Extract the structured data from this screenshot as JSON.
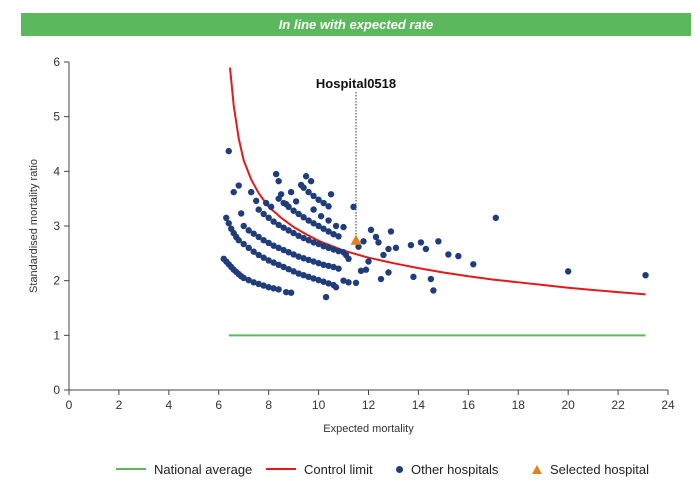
{
  "banner": {
    "text": "In line with expected rate",
    "color": "#5cb85c"
  },
  "legend": {
    "national_average": "National average",
    "control_limit": "Control limit",
    "other_hospitals": "Other hospitals",
    "selected_hospital": "Selected hospital"
  },
  "colors": {
    "national_average": "#5cb85c",
    "control_limit": "#e31a1c",
    "other_hospitals": "#1f3d7a",
    "selected_hospital": "#e67e22"
  },
  "chart_data": {
    "type": "scatter",
    "title": "",
    "xlabel": "Expected mortality",
    "ylabel": "Standardised mortality ratio",
    "xlim": [
      0,
      24
    ],
    "ylim": [
      0,
      6
    ],
    "xticks": [
      0,
      2,
      4,
      6,
      8,
      10,
      12,
      14,
      16,
      18,
      20,
      22,
      24
    ],
    "yticks": [
      0,
      1,
      2,
      3,
      4,
      5,
      6
    ],
    "grid": false,
    "legend_position": "bottom",
    "selected_label": "Hospital0518",
    "series": [
      {
        "name": "National average",
        "kind": "line",
        "points": [
          [
            6.4,
            1.0
          ],
          [
            23.1,
            1.0
          ]
        ]
      },
      {
        "name": "Control limit",
        "kind": "line",
        "points": [
          [
            6.45,
            5.9
          ],
          [
            6.6,
            5.2
          ],
          [
            6.8,
            4.6
          ],
          [
            7.0,
            4.2
          ],
          [
            7.3,
            3.85
          ],
          [
            7.6,
            3.6
          ],
          [
            8.0,
            3.35
          ],
          [
            8.5,
            3.15
          ],
          [
            9.0,
            2.98
          ],
          [
            9.5,
            2.85
          ],
          [
            10.0,
            2.73
          ],
          [
            11.0,
            2.55
          ],
          [
            12.0,
            2.42
          ],
          [
            13.0,
            2.32
          ],
          [
            14.0,
            2.23
          ],
          [
            15.0,
            2.15
          ],
          [
            16.0,
            2.08
          ],
          [
            17.0,
            2.02
          ],
          [
            18.0,
            1.97
          ],
          [
            19.0,
            1.92
          ],
          [
            20.0,
            1.87
          ],
          [
            21.0,
            1.83
          ],
          [
            22.0,
            1.79
          ],
          [
            23.1,
            1.75
          ]
        ]
      },
      {
        "name": "Other hospitals",
        "kind": "scatter",
        "points": [
          [
            6.2,
            2.4
          ],
          [
            6.3,
            2.35
          ],
          [
            6.4,
            2.3
          ],
          [
            6.5,
            2.25
          ],
          [
            6.6,
            2.2
          ],
          [
            6.7,
            2.16
          ],
          [
            6.8,
            2.12
          ],
          [
            6.9,
            2.08
          ],
          [
            7.0,
            2.05
          ],
          [
            7.2,
            2.01
          ],
          [
            7.4,
            1.97
          ],
          [
            7.6,
            1.94
          ],
          [
            7.8,
            1.91
          ],
          [
            8.0,
            1.88
          ],
          [
            8.2,
            1.86
          ],
          [
            8.4,
            1.84
          ],
          [
            8.7,
            1.79
          ],
          [
            8.9,
            1.78
          ],
          [
            6.3,
            3.15
          ],
          [
            6.4,
            3.05
          ],
          [
            6.5,
            2.95
          ],
          [
            6.6,
            2.87
          ],
          [
            6.7,
            2.8
          ],
          [
            6.8,
            2.74
          ],
          [
            7.0,
            2.67
          ],
          [
            7.2,
            2.6
          ],
          [
            7.4,
            2.53
          ],
          [
            7.6,
            2.47
          ],
          [
            7.8,
            2.42
          ],
          [
            8.0,
            2.37
          ],
          [
            8.2,
            2.33
          ],
          [
            8.4,
            2.29
          ],
          [
            8.6,
            2.25
          ],
          [
            8.8,
            2.21
          ],
          [
            9.0,
            2.17
          ],
          [
            9.2,
            2.13
          ],
          [
            9.4,
            2.1
          ],
          [
            9.6,
            2.07
          ],
          [
            9.8,
            2.04
          ],
          [
            10.0,
            2.01
          ],
          [
            10.2,
            1.98
          ],
          [
            10.4,
            1.95
          ],
          [
            10.6,
            1.92
          ],
          [
            10.7,
            1.88
          ],
          [
            10.3,
            1.7
          ],
          [
            7.0,
            3.0
          ],
          [
            7.2,
            2.92
          ],
          [
            7.4,
            2.86
          ],
          [
            7.6,
            2.8
          ],
          [
            7.8,
            2.74
          ],
          [
            8.0,
            2.69
          ],
          [
            8.2,
            2.64
          ],
          [
            8.4,
            2.6
          ],
          [
            8.6,
            2.56
          ],
          [
            8.8,
            2.52
          ],
          [
            9.0,
            2.48
          ],
          [
            9.2,
            2.44
          ],
          [
            9.4,
            2.41
          ],
          [
            9.6,
            2.38
          ],
          [
            9.8,
            2.35
          ],
          [
            10.0,
            2.32
          ],
          [
            10.2,
            2.29
          ],
          [
            10.4,
            2.27
          ],
          [
            10.6,
            2.25
          ],
          [
            10.8,
            2.22
          ],
          [
            7.6,
            3.3
          ],
          [
            7.8,
            3.22
          ],
          [
            8.0,
            3.15
          ],
          [
            8.2,
            3.08
          ],
          [
            8.4,
            3.02
          ],
          [
            8.6,
            2.97
          ],
          [
            8.8,
            2.92
          ],
          [
            9.0,
            2.87
          ],
          [
            9.2,
            2.82
          ],
          [
            9.4,
            2.78
          ],
          [
            9.6,
            2.74
          ],
          [
            9.8,
            2.7
          ],
          [
            10.0,
            2.67
          ],
          [
            10.2,
            2.63
          ],
          [
            10.4,
            2.6
          ],
          [
            10.6,
            2.57
          ],
          [
            10.8,
            2.54
          ],
          [
            11.0,
            2.52
          ],
          [
            8.4,
            3.5
          ],
          [
            8.6,
            3.42
          ],
          [
            8.8,
            3.35
          ],
          [
            9.0,
            3.28
          ],
          [
            9.2,
            3.22
          ],
          [
            9.4,
            3.16
          ],
          [
            9.6,
            3.1
          ],
          [
            9.8,
            3.05
          ],
          [
            10.0,
            3.0
          ],
          [
            10.2,
            2.95
          ],
          [
            10.4,
            2.9
          ],
          [
            10.6,
            2.85
          ],
          [
            10.8,
            2.81
          ],
          [
            9.4,
            3.7
          ],
          [
            9.6,
            3.62
          ],
          [
            9.8,
            3.55
          ],
          [
            10.0,
            3.48
          ],
          [
            10.2,
            3.42
          ],
          [
            10.4,
            3.36
          ],
          [
            6.4,
            4.37
          ],
          [
            6.6,
            3.62
          ],
          [
            6.8,
            3.74
          ],
          [
            6.9,
            3.23
          ],
          [
            7.3,
            3.62
          ],
          [
            7.5,
            3.46
          ],
          [
            7.9,
            3.42
          ],
          [
            8.1,
            3.35
          ],
          [
            8.3,
            3.95
          ],
          [
            8.4,
            3.82
          ],
          [
            8.5,
            3.58
          ],
          [
            8.7,
            3.4
          ],
          [
            8.9,
            3.62
          ],
          [
            9.1,
            3.45
          ],
          [
            9.3,
            3.75
          ],
          [
            9.5,
            3.91
          ],
          [
            9.7,
            3.82
          ],
          [
            9.8,
            3.3
          ],
          [
            10.1,
            3.18
          ],
          [
            10.4,
            3.1
          ],
          [
            10.5,
            3.58
          ],
          [
            10.7,
            3.0
          ],
          [
            11.0,
            2.98
          ],
          [
            11.4,
            3.35
          ],
          [
            11.1,
            2.47
          ],
          [
            11.6,
            2.62
          ],
          [
            11.8,
            2.72
          ],
          [
            12.1,
            2.93
          ],
          [
            12.3,
            2.8
          ],
          [
            12.4,
            2.7
          ],
          [
            12.6,
            2.47
          ],
          [
            12.8,
            2.58
          ],
          [
            12.9,
            2.9
          ],
          [
            13.1,
            2.6
          ],
          [
            11.0,
            2.0
          ],
          [
            11.2,
            1.97
          ],
          [
            11.5,
            1.96
          ],
          [
            11.9,
            2.2
          ],
          [
            12.5,
            2.03
          ],
          [
            12.8,
            2.15
          ],
          [
            13.7,
            2.65
          ],
          [
            13.8,
            2.07
          ],
          [
            14.1,
            2.7
          ],
          [
            14.3,
            2.58
          ],
          [
            14.5,
            2.03
          ],
          [
            14.6,
            1.82
          ],
          [
            14.8,
            2.72
          ],
          [
            15.2,
            2.48
          ],
          [
            15.6,
            2.45
          ],
          [
            16.2,
            2.3
          ],
          [
            17.1,
            3.15
          ],
          [
            20.0,
            2.17
          ],
          [
            23.1,
            2.1
          ],
          [
            11.2,
            2.4
          ],
          [
            12.0,
            2.35
          ],
          [
            11.7,
            2.18
          ]
        ]
      },
      {
        "name": "Selected hospital",
        "kind": "scatter",
        "points": [
          [
            11.5,
            2.73
          ]
        ]
      }
    ]
  }
}
